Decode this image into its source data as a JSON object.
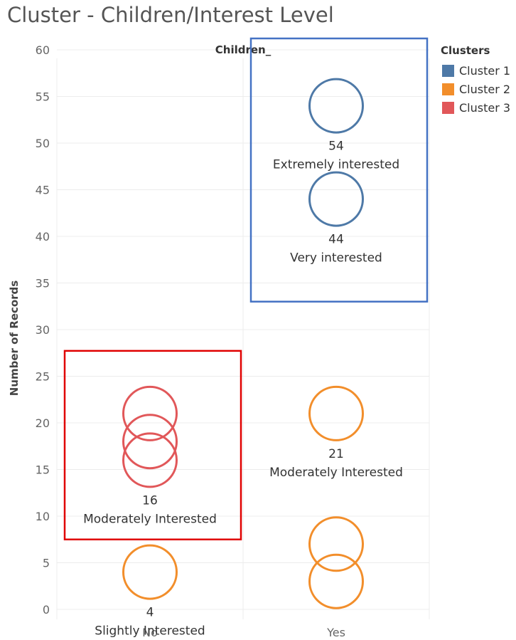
{
  "title": "Cluster - Children/Interest Level",
  "colors": {
    "cluster1": "#4e79a7",
    "cluster2": "#f28e2b",
    "cluster3": "#e15759",
    "highlight_blue": "#4472c4",
    "highlight_red": "#e00000",
    "grid": "#ececec",
    "axis_text": "#666666"
  },
  "legend": {
    "title": "Clusters",
    "items": [
      {
        "label": "Cluster 1",
        "color": "#4e79a7"
      },
      {
        "label": "Cluster 2",
        "color": "#f28e2b"
      },
      {
        "label": "Cluster 3",
        "color": "#e15759"
      }
    ]
  },
  "chart_data": {
    "type": "scatter",
    "title": "Cluster - Children/Interest Level",
    "column_header": "Children_",
    "xlabel": "",
    "ylabel": "Number of Records",
    "categories": [
      "No",
      "Yes"
    ],
    "ylim": [
      -1,
      62
    ],
    "yticks": [
      0,
      5,
      10,
      15,
      20,
      25,
      30,
      35,
      40,
      45,
      50,
      55,
      60
    ],
    "grid": true,
    "legend_position": "top-right",
    "points": [
      {
        "x": "No",
        "y": 21,
        "cluster": "Cluster 3"
      },
      {
        "x": "No",
        "y": 18,
        "cluster": "Cluster 3"
      },
      {
        "x": "No",
        "y": 16,
        "cluster": "Cluster 3",
        "label": "16",
        "label2": "Moderately Interested"
      },
      {
        "x": "No",
        "y": 4,
        "cluster": "Cluster 2",
        "label": "4",
        "label2": "Slightly Interested"
      },
      {
        "x": "Yes",
        "y": 54,
        "cluster": "Cluster 1",
        "label": "54",
        "label2": "Extremely interested"
      },
      {
        "x": "Yes",
        "y": 44,
        "cluster": "Cluster 1",
        "label": "44",
        "label2": "Very interested"
      },
      {
        "x": "Yes",
        "y": 21,
        "cluster": "Cluster 2",
        "label": "21",
        "label2": "Moderately Interested"
      },
      {
        "x": "Yes",
        "y": 7,
        "cluster": "Cluster 2"
      },
      {
        "x": "Yes",
        "y": 3,
        "cluster": "Cluster 2"
      }
    ],
    "highlight_boxes": [
      {
        "category": "Yes",
        "y_range": [
          33,
          60
        ],
        "color": "#4472c4"
      },
      {
        "category": "No",
        "y_range": [
          7.5,
          26.5
        ],
        "color": "#e00000"
      }
    ]
  }
}
